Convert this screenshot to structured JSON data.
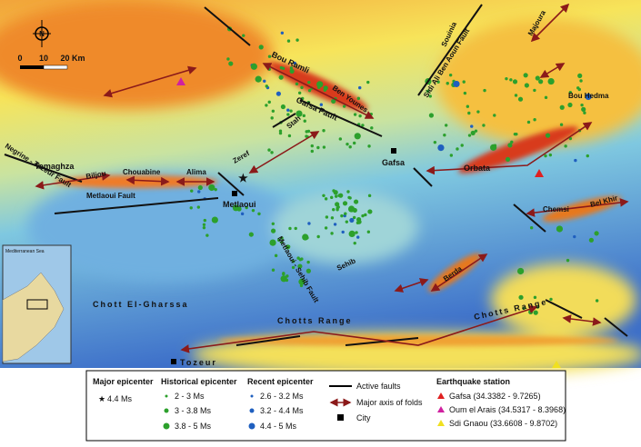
{
  "map": {
    "north": "N",
    "scale": [
      "0",
      "10",
      "20 Km"
    ],
    "inset_label": "Mediterranean Sea",
    "labels": [
      "Tamaghza",
      "Negrine - Tozeur Fault",
      "Biljou",
      "Chouabine",
      "Alima",
      "Metlaoui  Fault",
      "Zeref",
      "Metlaoui",
      "Bou Ramli",
      "Gafsa Fault",
      "Ben Younes",
      "Stah",
      "Gafsa",
      "Souinia",
      "Sidi Ali Ben Aoun Fault",
      "Majoura",
      "Bou Hedma",
      "Orbata",
      "Chemsi",
      "Bel Khir",
      "Metlaoui - Sehib Fault",
      "Sehib",
      "Berda",
      "Chott El-Gharssa",
      "Chotts Range",
      "Chotts Range",
      "Tozeur"
    ]
  },
  "legend": {
    "major": {
      "title": "Major epicenter",
      "items": [
        "4.4 Ms"
      ]
    },
    "historical": {
      "title": "Historical epicenter",
      "items": [
        "2 - 3 Ms",
        "3 - 3.8 Ms",
        "3.8 - 5 Ms"
      ]
    },
    "recent": {
      "title": "Recent epicenter",
      "items": [
        "2.6 - 3.2 Ms",
        "3.2 - 4.4 Ms",
        "4.4 - 5 Ms"
      ]
    },
    "symbols": [
      "Active faults",
      "Major axis of folds",
      "City"
    ],
    "stations": {
      "title": "Earthquake station",
      "items": [
        "Gafsa (34.3382 - 9.7265)",
        "Oum el Arais (34.5317 - 8.3968)",
        "Sdi Gnaou (33.6608 - 9.8702)"
      ]
    }
  }
}
